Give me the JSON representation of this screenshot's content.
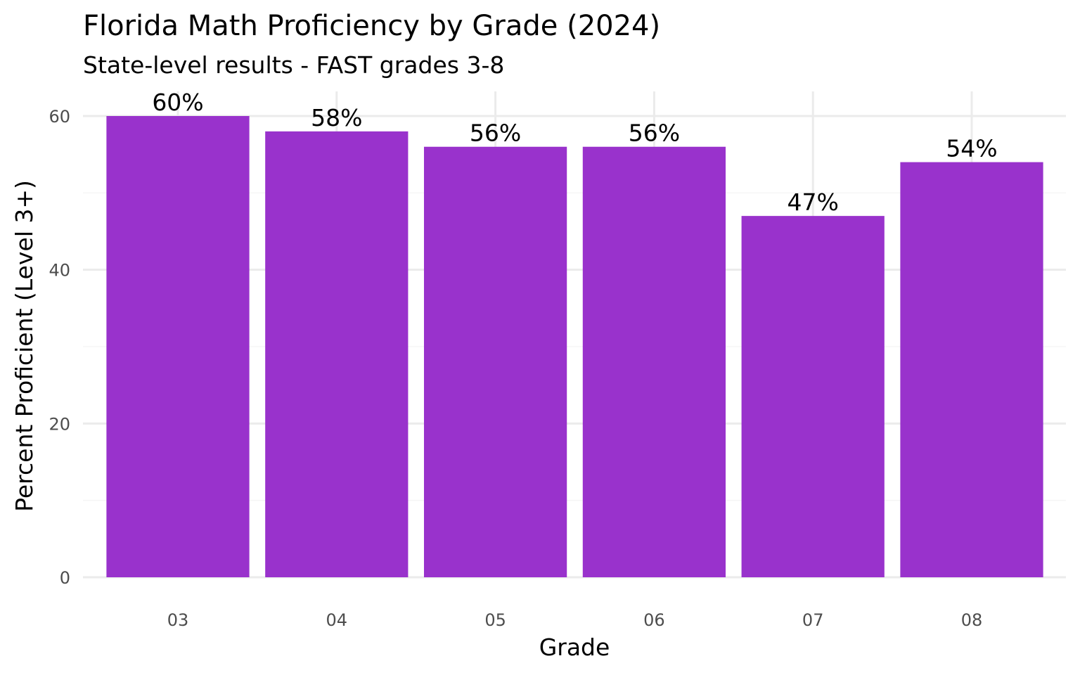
{
  "chart_data": {
    "type": "bar",
    "title": "Florida Math Proficiency by Grade (2024)",
    "subtitle": "State-level results - FAST grades 3-8",
    "xlabel": "Grade",
    "ylabel": "Percent Proficient (Level 3+)",
    "categories": [
      "03",
      "04",
      "05",
      "06",
      "07",
      "08"
    ],
    "values": [
      60,
      58,
      56,
      56,
      47,
      54
    ],
    "data_labels": [
      "60%",
      "58%",
      "56%",
      "56%",
      "47%",
      "54%"
    ],
    "ylim": [
      0,
      63
    ],
    "yticks": [
      0,
      20,
      40,
      60
    ],
    "ytick_labels": [
      "0",
      "20",
      "40",
      "60"
    ],
    "grid": true,
    "legend": "none",
    "colors": {
      "bar": "#9932CC",
      "grid_major": "#EBEBEB",
      "grid_minor": "#F5F5F5",
      "tick_text": "#4D4D4D",
      "text": "#000000"
    }
  }
}
